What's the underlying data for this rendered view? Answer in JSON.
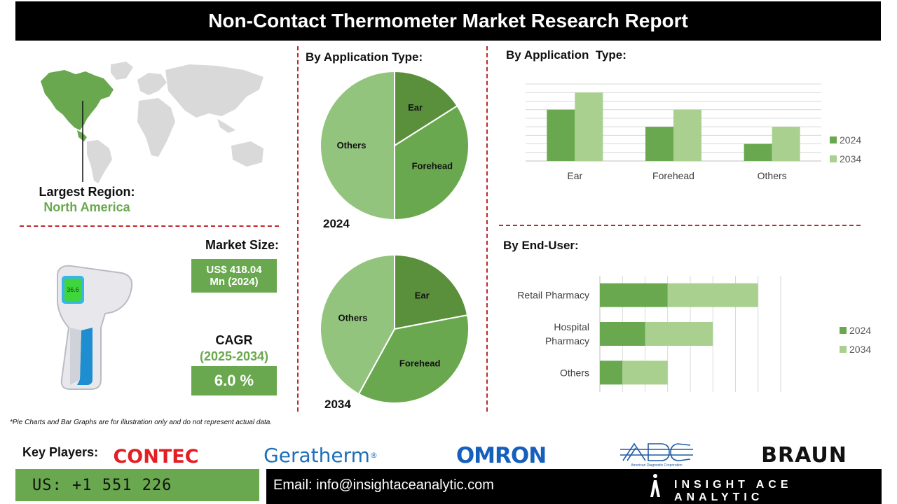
{
  "title": "Non-Contact Thermometer Market Research Report",
  "region": {
    "label": "Largest Region:",
    "value": "North America"
  },
  "market_size": {
    "label": "Market Size:",
    "value_line1": "US$ 418.04",
    "value_line2": "Mn (2024)"
  },
  "cagr": {
    "label": "CAGR",
    "period": "(2025-2034)",
    "value": "6.0 %"
  },
  "thermometer_display": "36.6",
  "disclaimer": "*Pie Charts and Bar Graphs are for illustration only and do not represent actual data.",
  "key_players": {
    "label": "Key Players:",
    "logos": [
      "CONTEC",
      "Geratherm",
      "OMRON",
      "ADC",
      "American Diagnostic Corporation",
      "BRAUN"
    ]
  },
  "footer": {
    "phone": "US: +1 551 226",
    "email": "Email: info@insightaceanalytic.com",
    "brand": "INSIGHT ACE ANALYTIC"
  },
  "colors": {
    "dark_green": "#5a8f3c",
    "mid_green": "#6aa84f",
    "light_green": "#93c47d",
    "pale_green": "#a9d08e",
    "accent_red": "#c0282d"
  },
  "chart_data": [
    {
      "type": "pie",
      "title": "By Application Type:",
      "year_label": "2024",
      "slices": [
        {
          "label": "Ear",
          "value": 16
        },
        {
          "label": "Forehead",
          "value": 34
        },
        {
          "label": "Others",
          "value": 50
        }
      ]
    },
    {
      "type": "pie",
      "year_label": "2034",
      "slices": [
        {
          "label": "Ear",
          "value": 22
        },
        {
          "label": "Forehead",
          "value": 36
        },
        {
          "label": "Others",
          "value": 42
        }
      ]
    },
    {
      "type": "bar",
      "title": "By Application  Type:",
      "categories": [
        "Ear",
        "Forehead",
        "Others"
      ],
      "series": [
        {
          "name": "2024",
          "values": [
            3,
            2,
            1
          ]
        },
        {
          "name": "2034",
          "values": [
            4,
            3,
            2
          ]
        }
      ],
      "ylim": [
        0,
        4.5
      ],
      "grid": true,
      "legend": "right"
    },
    {
      "type": "bar",
      "orientation": "horizontal-stacked",
      "title": "By End-User:",
      "categories": [
        "Retail Pharmacy",
        "Hospital Pharmacy",
        "Others"
      ],
      "category_lines": [
        [
          "Retail Pharmacy"
        ],
        [
          "Hospital",
          "Pharmacy"
        ],
        [
          "Others"
        ]
      ],
      "series": [
        {
          "name": "2024",
          "values": [
            3,
            2,
            1
          ]
        },
        {
          "name": "2034",
          "values": [
            4,
            3,
            2
          ]
        }
      ],
      "xlim": [
        0,
        8
      ],
      "grid": true,
      "legend": "right"
    }
  ]
}
